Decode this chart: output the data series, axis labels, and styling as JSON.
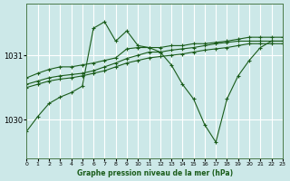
{
  "bg_color": "#cce8e8",
  "grid_color": "#ffffff",
  "line_color": "#1a5c1a",
  "title": "Graphe pression niveau de la mer (hPa)",
  "xlim": [
    0,
    23
  ],
  "ylim": [
    1029.4,
    1031.8
  ],
  "yticks": [
    1030,
    1031
  ],
  "xticks": [
    0,
    1,
    2,
    3,
    4,
    5,
    6,
    7,
    8,
    9,
    10,
    11,
    12,
    13,
    14,
    15,
    16,
    17,
    18,
    19,
    20,
    21,
    22,
    23
  ],
  "series": [
    [
      1030.55,
      1030.6,
      1030.65,
      1030.68,
      1030.7,
      1030.72,
      1030.76,
      1030.82,
      1030.88,
      1030.95,
      1031.0,
      1031.05,
      1031.05,
      1031.08,
      1031.1,
      1031.12,
      1031.15,
      1031.18,
      1031.2,
      1031.22,
      1031.22,
      1031.22,
      1031.22,
      1031.22
    ],
    [
      1030.5,
      1030.55,
      1030.6,
      1030.63,
      1030.65,
      1030.68,
      1030.72,
      1030.76,
      1030.82,
      1030.88,
      1030.92,
      1030.96,
      1030.98,
      1031.0,
      1031.02,
      1031.05,
      1031.08,
      1031.1,
      1031.12,
      1031.15,
      1031.18,
      1031.18,
      1031.18,
      1031.18
    ],
    [
      1030.65,
      1030.72,
      1030.78,
      1030.82,
      1030.82,
      1030.85,
      1030.88,
      1030.92,
      1030.96,
      1031.1,
      1031.12,
      1031.12,
      1031.12,
      1031.15,
      1031.15,
      1031.18,
      1031.18,
      1031.2,
      1031.22,
      1031.25,
      1031.28,
      1031.28,
      1031.28,
      1031.28
    ],
    [
      1029.82,
      1030.05,
      1030.25,
      1030.35,
      1030.42,
      1030.52,
      1031.42,
      1031.52,
      1031.22,
      1031.38,
      1031.15,
      1031.12,
      1031.05,
      1030.85,
      1030.55,
      1030.32,
      1029.92,
      1029.65,
      1030.32,
      1030.68,
      1030.92,
      1031.12,
      1031.22,
      1031.22
    ]
  ]
}
